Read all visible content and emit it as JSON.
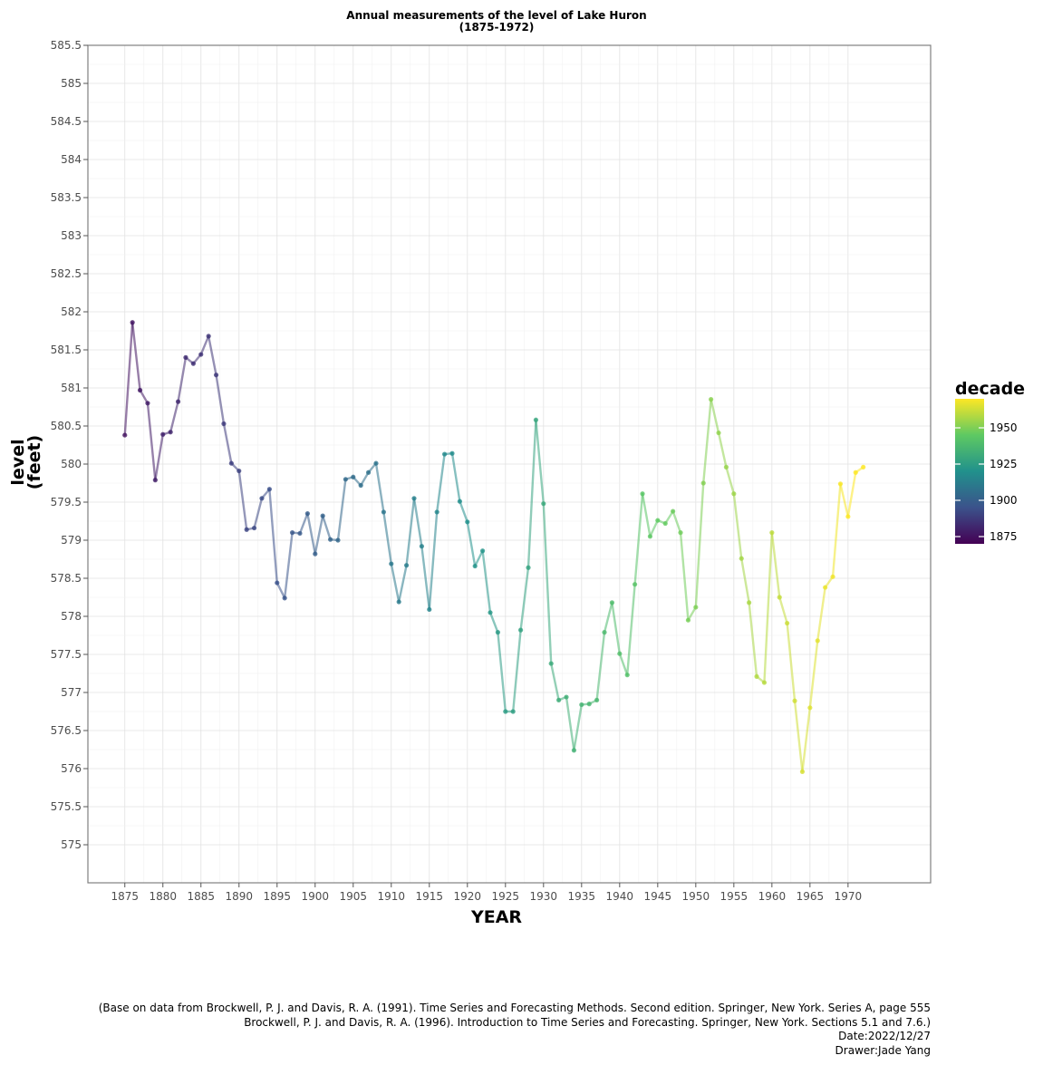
{
  "chart_data": {
    "type": "line",
    "title": [
      "Annual measurements of the level of Lake Huron",
      "(1875-1972)"
    ],
    "xlabel": "YEAR",
    "ylabel": [
      "level",
      "(feet)"
    ],
    "xlim": [
      1870.15,
      1980.85
    ],
    "ylim": [
      574.5,
      585.5
    ],
    "x_ticks": [
      1875,
      1880,
      1885,
      1890,
      1895,
      1900,
      1905,
      1910,
      1915,
      1920,
      1925,
      1930,
      1935,
      1940,
      1945,
      1950,
      1955,
      1960,
      1965,
      1970
    ],
    "x_tick_labels": [
      "1875",
      "1880",
      "1885",
      "1890",
      "1895",
      "1900",
      "1905",
      "1910",
      "1915",
      "1920",
      "1925",
      "1930",
      "1935",
      "1940",
      "1945",
      "1950",
      "1955",
      "1960",
      "1965",
      "1970"
    ],
    "y_ticks": [
      575,
      575.5,
      576,
      576.5,
      577,
      577.5,
      578,
      578.5,
      579,
      579.5,
      580,
      580.5,
      581,
      581.5,
      582,
      582.5,
      583,
      583.5,
      584,
      584.5,
      585,
      585.5
    ],
    "y_tick_labels": [
      "575",
      "575.5",
      "576",
      "576.5",
      "577",
      "577.5",
      "578",
      "578.5",
      "579",
      "579.5",
      "580",
      "580.5",
      "581",
      "581.5",
      "582",
      "582.5",
      "583",
      "583.5",
      "584",
      "584.5",
      "585",
      "585.5"
    ],
    "grid": true,
    "x": [
      1875,
      1876,
      1877,
      1878,
      1879,
      1880,
      1881,
      1882,
      1883,
      1884,
      1885,
      1886,
      1887,
      1888,
      1889,
      1890,
      1891,
      1892,
      1893,
      1894,
      1895,
      1896,
      1897,
      1898,
      1899,
      1900,
      1901,
      1902,
      1903,
      1904,
      1905,
      1906,
      1907,
      1908,
      1909,
      1910,
      1911,
      1912,
      1913,
      1914,
      1915,
      1916,
      1917,
      1918,
      1919,
      1920,
      1921,
      1922,
      1923,
      1924,
      1925,
      1926,
      1927,
      1928,
      1929,
      1930,
      1931,
      1932,
      1933,
      1934,
      1935,
      1936,
      1937,
      1938,
      1939,
      1940,
      1941,
      1942,
      1943,
      1944,
      1945,
      1946,
      1947,
      1948,
      1949,
      1950,
      1951,
      1952,
      1953,
      1954,
      1955,
      1956,
      1957,
      1958,
      1959,
      1960,
      1961,
      1962,
      1963,
      1964,
      1965,
      1966,
      1967,
      1968,
      1969,
      1970,
      1971,
      1972
    ],
    "values": [
      580.38,
      581.86,
      580.97,
      580.8,
      579.79,
      580.39,
      580.42,
      580.82,
      581.4,
      581.32,
      581.44,
      581.68,
      581.17,
      580.53,
      580.01,
      579.91,
      579.14,
      579.16,
      579.55,
      579.67,
      578.44,
      578.24,
      579.1,
      579.09,
      579.35,
      578.82,
      579.32,
      579.01,
      579.0,
      579.8,
      579.83,
      579.72,
      579.89,
      580.01,
      579.37,
      578.69,
      578.19,
      578.67,
      579.55,
      578.92,
      578.09,
      579.37,
      580.13,
      580.14,
      579.51,
      579.24,
      578.66,
      578.86,
      578.05,
      577.79,
      576.75,
      576.75,
      577.82,
      578.64,
      580.58,
      579.48,
      577.38,
      576.9,
      576.94,
      576.24,
      576.84,
      576.85,
      576.9,
      577.79,
      578.18,
      577.51,
      577.23,
      578.42,
      579.61,
      579.05,
      579.26,
      579.22,
      579.38,
      579.1,
      577.95,
      578.12,
      579.75,
      580.85,
      580.41,
      579.96,
      579.61,
      578.76,
      578.18,
      577.21,
      577.13,
      579.1,
      578.25,
      577.91,
      576.89,
      575.96,
      576.8,
      577.68,
      578.38,
      578.52,
      579.74,
      579.31,
      579.89,
      579.96
    ],
    "color_by": "decade",
    "colormap": [
      "#440154",
      "#3b528b",
      "#21918c",
      "#5ec962",
      "#fde725"
    ],
    "color_range": [
      1870,
      1970
    ],
    "legend": {
      "title": "decade",
      "position": "right",
      "ticks": [
        1875,
        1900,
        1925,
        1950
      ],
      "tick_labels": [
        "1875",
        "1900",
        "1925",
        "1950"
      ]
    }
  },
  "caption": [
    "(Base on data from Brockwell, P. J. and Davis, R. A. (1991). Time Series and Forecasting Methods. Second edition. Springer, New York. Series A, page 555",
    "Brockwell, P. J. and Davis, R. A. (1996). Introduction to Time Series and Forecasting. Springer, New York. Sections 5.1 and 7.6.)",
    "Date:2022/12/27",
    "Drawer:Jade Yang"
  ]
}
